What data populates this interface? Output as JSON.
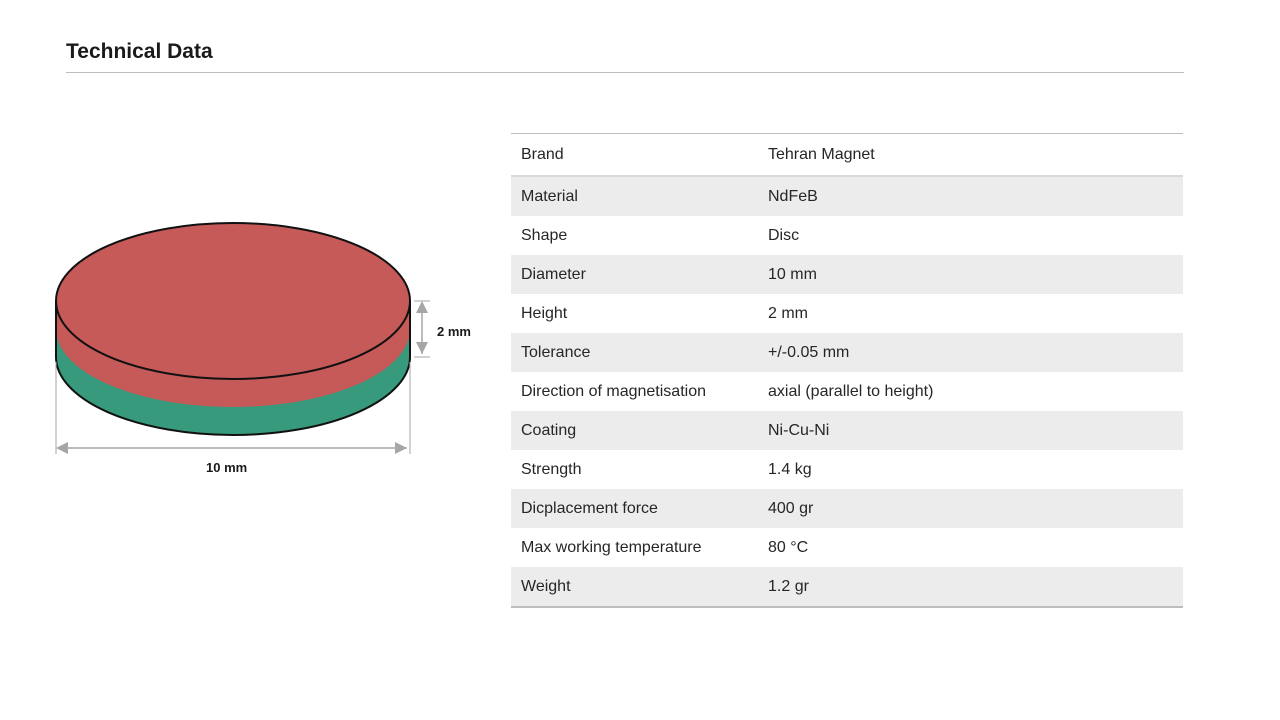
{
  "page": {
    "title": "Technical Data"
  },
  "diagram": {
    "top_color": "#c65a58",
    "side_top_color": "#c65a58",
    "side_bottom_color": "#379a7c",
    "outline_color": "#111111",
    "dimension_color": "#a6a6a6",
    "height_label": "2 mm",
    "diameter_label": "10 mm"
  },
  "specs": [
    {
      "label": "Brand",
      "value": "Tehran Magnet"
    },
    {
      "label": "Material",
      "value": "NdFeB"
    },
    {
      "label": "Shape",
      "value": "Disc"
    },
    {
      "label": "Diameter",
      "value": "10 mm"
    },
    {
      "label": "Height",
      "value": "2 mm"
    },
    {
      "label": "Tolerance",
      "value": "+/-0.05 mm"
    },
    {
      "label": "Direction of magnetisation",
      "value": "axial (parallel to height)"
    },
    {
      "label": "Coating",
      "value": "Ni-Cu-Ni"
    },
    {
      "label": "Strength",
      "value": "1.4 kg"
    },
    {
      "label": "Dicplacement force",
      "value": "400 gr"
    },
    {
      "label": "Max working temperature",
      "value": "80 °C"
    },
    {
      "label": "Weight",
      "value": "1.2 gr"
    }
  ]
}
